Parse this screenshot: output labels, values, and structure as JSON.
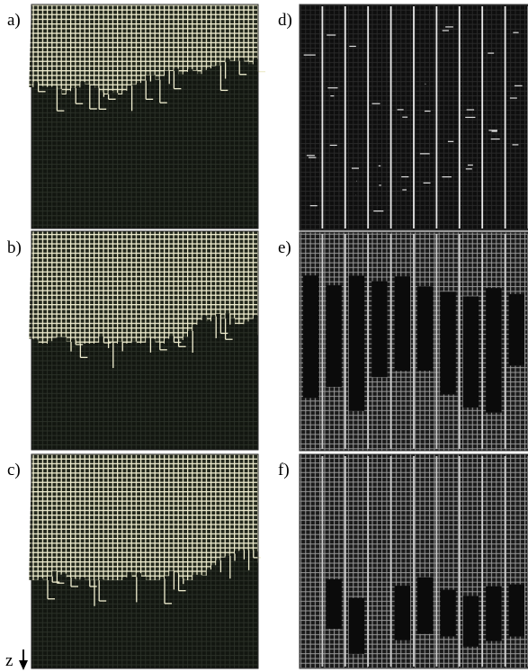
{
  "panels": [
    {
      "label": "a)"
    },
    {
      "label": "b)"
    },
    {
      "label": "c)"
    },
    {
      "label": "d)"
    },
    {
      "label": "e)"
    },
    {
      "label": "f)"
    }
  ],
  "z_label": "z"
}
